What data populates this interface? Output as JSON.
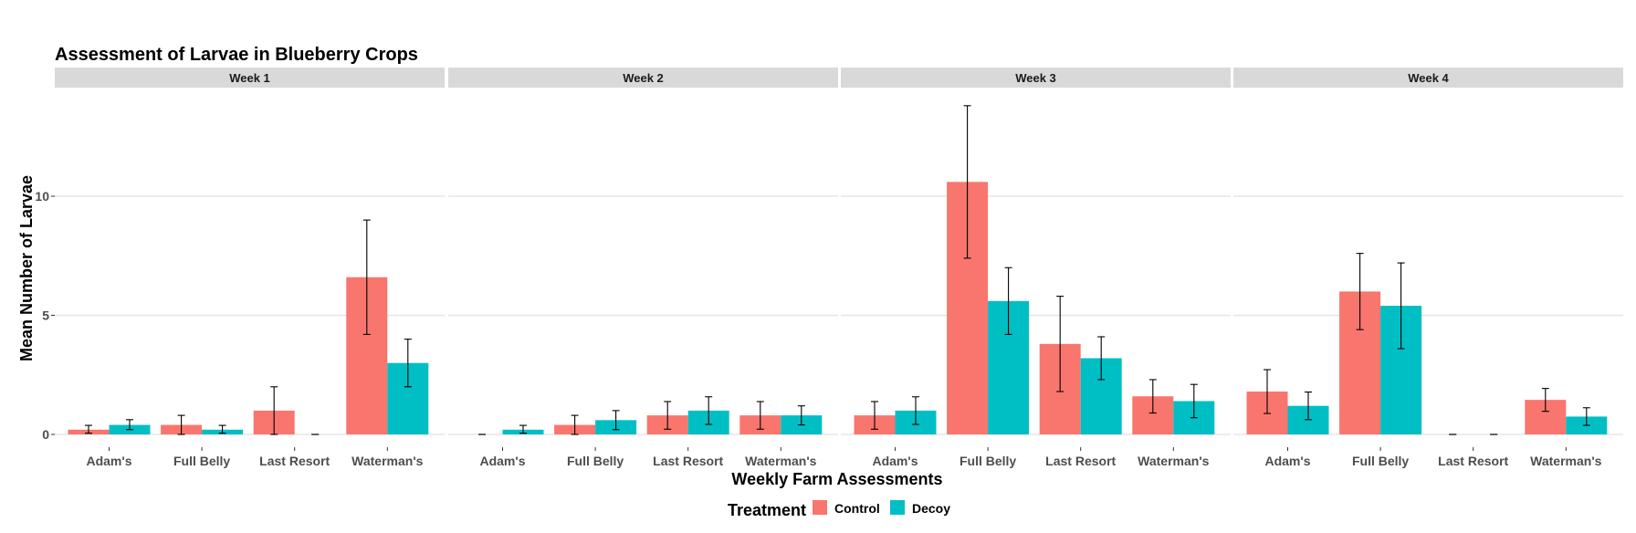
{
  "chart_data": {
    "type": "bar",
    "title": "Assessment of Larvae in Blueberry Crops",
    "xlabel": "Weekly Farm Assessments",
    "ylabel": "Mean Number of Larvae",
    "ylim": [
      0,
      14
    ],
    "yticks": [
      0,
      5,
      10
    ],
    "grid": true,
    "legend_position": "bottom",
    "legend_title": "Treatment",
    "categories": [
      "Adam's",
      "Full Belly",
      "Last Resort",
      "Waterman's"
    ],
    "series": [
      {
        "name": "Control",
        "color": "#F8766D"
      },
      {
        "name": "Decoy",
        "color": "#00BFC4"
      }
    ],
    "facets": [
      {
        "label": "Week 1",
        "values": {
          "Control": [
            0.2,
            0.4,
            1.0,
            6.6
          ],
          "Decoy": [
            0.4,
            0.2,
            0.0,
            3.0
          ]
        },
        "errors": {
          "Control": [
            [
              0.05,
              0.38
            ],
            [
              0.0,
              0.8
            ],
            [
              0.0,
              2.0
            ],
            [
              4.2,
              9.0
            ]
          ],
          "Decoy": [
            [
              0.2,
              0.62
            ],
            [
              0.05,
              0.38
            ],
            [
              0.0,
              0.0
            ],
            [
              2.0,
              4.0
            ]
          ]
        }
      },
      {
        "label": "Week 2",
        "values": {
          "Control": [
            0.0,
            0.4,
            0.8,
            0.8
          ],
          "Decoy": [
            0.2,
            0.6,
            1.0,
            0.8
          ]
        },
        "errors": {
          "Control": [
            [
              0.0,
              0.0
            ],
            [
              0.0,
              0.8
            ],
            [
              0.22,
              1.38
            ],
            [
              0.22,
              1.38
            ]
          ],
          "Decoy": [
            [
              0.05,
              0.38
            ],
            [
              0.2,
              1.0
            ],
            [
              0.42,
              1.58
            ],
            [
              0.4,
              1.2
            ]
          ]
        }
      },
      {
        "label": "Week 3",
        "values": {
          "Control": [
            0.8,
            10.6,
            3.8,
            1.6
          ],
          "Decoy": [
            1.0,
            5.6,
            3.2,
            1.4
          ]
        },
        "errors": {
          "Control": [
            [
              0.22,
              1.38
            ],
            [
              7.4,
              13.8
            ],
            [
              1.8,
              5.8
            ],
            [
              0.9,
              2.3
            ]
          ],
          "Decoy": [
            [
              0.42,
              1.58
            ],
            [
              4.2,
              7.0
            ],
            [
              2.3,
              4.1
            ],
            [
              0.7,
              2.1
            ]
          ]
        }
      },
      {
        "label": "Week 4",
        "values": {
          "Control": [
            1.8,
            6.0,
            0.0,
            1.45
          ],
          "Decoy": [
            1.2,
            5.4,
            0.0,
            0.75
          ]
        },
        "errors": {
          "Control": [
            [
              0.88,
              2.72
            ],
            [
              4.4,
              7.6
            ],
            [
              0.0,
              0.0
            ],
            [
              0.97,
              1.93
            ]
          ],
          "Decoy": [
            [
              0.62,
              1.78
            ],
            [
              3.6,
              7.2
            ],
            [
              0.0,
              0.0
            ],
            [
              0.38,
              1.12
            ]
          ]
        }
      }
    ]
  }
}
